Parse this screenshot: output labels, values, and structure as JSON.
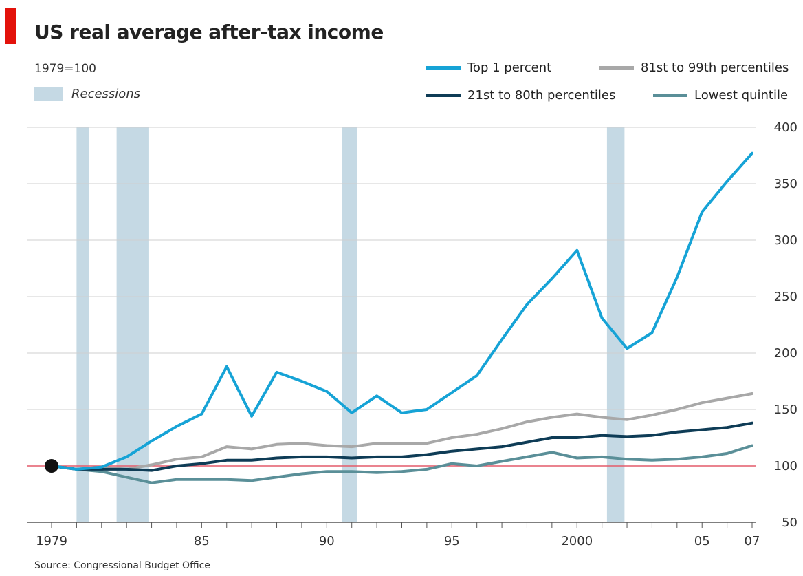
{
  "title": "US real average after-tax income",
  "subtitle": "1979=100",
  "source": "Source: Congressional Budget Office",
  "colors": {
    "brand_red": "#e3120b",
    "recession": "#c5d9e4",
    "grid": "#cfcfcf",
    "baseline": "#e35a6a"
  },
  "legend": {
    "recessions": "Recessions",
    "items": [
      {
        "label": "Top 1 percent",
        "color": "#16a3d6"
      },
      {
        "label": "81st to 99th percentiles",
        "color": "#a8a8a8"
      },
      {
        "label": "21st to 80th percentiles",
        "color": "#0e3c56"
      },
      {
        "label": "Lowest quintile",
        "color": "#5a8f98"
      }
    ]
  },
  "chart_data": {
    "type": "line",
    "title": "US real average after-tax income",
    "subtitle": "1979=100",
    "xlabel": "",
    "ylabel": "",
    "xlim": [
      1979,
      2007
    ],
    "ylim": [
      50,
      400
    ],
    "y_ticks": [
      50,
      100,
      150,
      200,
      250,
      300,
      350,
      400
    ],
    "x_ticks": [
      {
        "value": 1979,
        "label": "1979"
      },
      {
        "value": 1985,
        "label": "85"
      },
      {
        "value": 1990,
        "label": "90"
      },
      {
        "value": 1995,
        "label": "95"
      },
      {
        "value": 2000,
        "label": "2000"
      },
      {
        "value": 2005,
        "label": "05"
      },
      {
        "value": 2007,
        "label": "07"
      }
    ],
    "baseline": 100,
    "grid": true,
    "y_axis_position": "right",
    "recessions": [
      [
        1980.0,
        1980.5
      ],
      [
        1981.6,
        1982.9
      ],
      [
        1990.6,
        1991.2
      ],
      [
        2001.2,
        2001.9
      ]
    ],
    "x": [
      1979,
      1980,
      1981,
      1982,
      1983,
      1984,
      1985,
      1986,
      1987,
      1988,
      1989,
      1990,
      1991,
      1992,
      1993,
      1994,
      1995,
      1996,
      1997,
      1998,
      1999,
      2000,
      2001,
      2002,
      2003,
      2004,
      2005,
      2006,
      2007
    ],
    "series": [
      {
        "name": "Top 1 percent",
        "color": "#16a3d6",
        "values": [
          100,
          97,
          99,
          108,
          122,
          135,
          146,
          188,
          144,
          183,
          175,
          166,
          147,
          162,
          147,
          150,
          165,
          180,
          212,
          243,
          266,
          291,
          231,
          204,
          218,
          267,
          325,
          352,
          377
        ]
      },
      {
        "name": "81st to 99th percentiles",
        "color": "#a8a8a8",
        "values": [
          100,
          97,
          99,
          97,
          101,
          106,
          108,
          117,
          115,
          119,
          120,
          118,
          117,
          120,
          120,
          120,
          125,
          128,
          133,
          139,
          143,
          146,
          143,
          141,
          145,
          150,
          156,
          160,
          164
        ]
      },
      {
        "name": "21st to 80th percentiles",
        "color": "#0e3c56",
        "values": [
          100,
          97,
          97,
          97,
          96,
          100,
          102,
          105,
          105,
          107,
          108,
          108,
          107,
          108,
          108,
          110,
          113,
          115,
          117,
          121,
          125,
          125,
          127,
          126,
          127,
          130,
          132,
          134,
          138
        ]
      },
      {
        "name": "Lowest quintile",
        "color": "#5a8f98",
        "values": [
          100,
          97,
          95,
          90,
          85,
          88,
          88,
          88,
          87,
          90,
          93,
          95,
          95,
          94,
          95,
          97,
          102,
          100,
          104,
          108,
          112,
          107,
          108,
          106,
          105,
          106,
          108,
          111,
          118
        ]
      }
    ]
  }
}
